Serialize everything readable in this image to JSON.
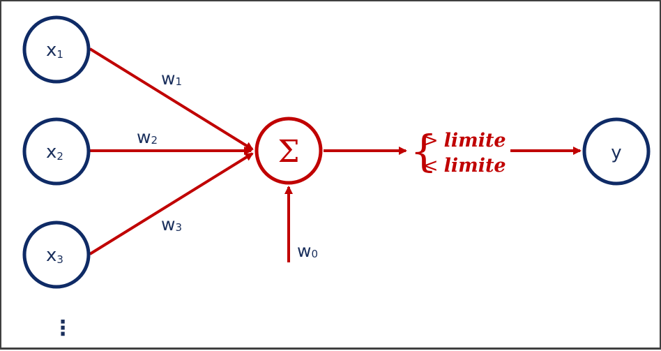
{
  "inputs": [
    {
      "base": "x",
      "sub": "1"
    },
    {
      "base": "x",
      "sub": "2"
    },
    {
      "base": "x",
      "sub": "3"
    }
  ],
  "weights": [
    {
      "base": "w",
      "sub": "1"
    },
    {
      "base": "w",
      "sub": "2"
    },
    {
      "base": "w",
      "sub": "3"
    }
  ],
  "bias": {
    "base": "w",
    "sub": "0"
  },
  "sum_symbol": "Σ",
  "ellipsis": "⋮",
  "threshold": {
    "brace": "{",
    "above_op": ">",
    "above_word": "limite",
    "below_op": "<",
    "below_word": "limite"
  },
  "output": "y",
  "colors": {
    "input_node": "#0f2b66",
    "signal": "#c00000",
    "text": "#1a2f5c"
  }
}
